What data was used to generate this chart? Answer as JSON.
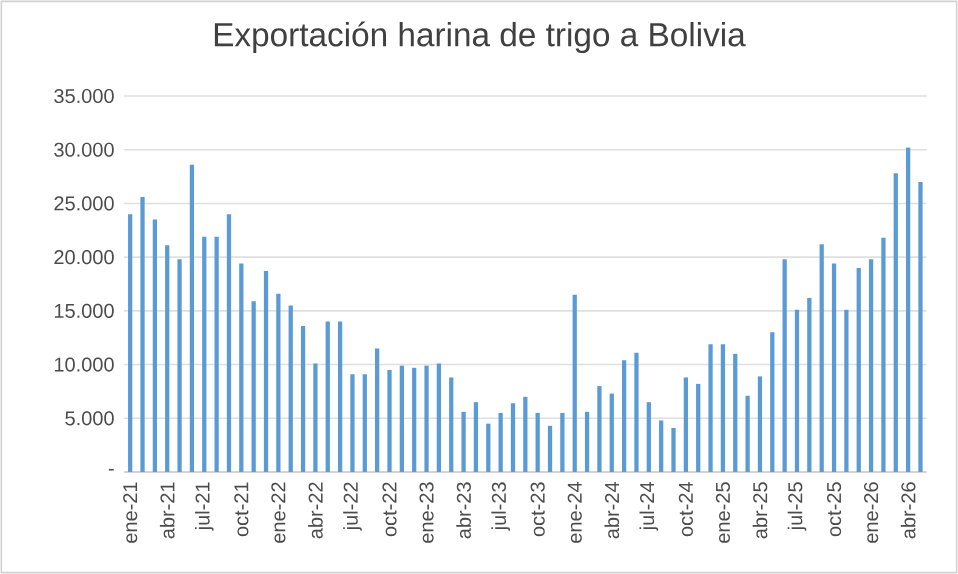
{
  "chart_data": {
    "type": "bar",
    "title": "Exportación harina de trigo a Bolivia",
    "categories": [
      "ene-21",
      null,
      null,
      "abr-21",
      null,
      null,
      "jul-21",
      null,
      null,
      "oct-21",
      null,
      null,
      "ene-22",
      null,
      null,
      "abr-22",
      null,
      null,
      "jul-22",
      null,
      null,
      "oct-22",
      null,
      null,
      "ene-23",
      null,
      null,
      "abr-23",
      null,
      null,
      "jul-23",
      null,
      null,
      "oct-23",
      null,
      null,
      "ene-24",
      null,
      null,
      "abr-24",
      null,
      null,
      "jul-24",
      null,
      null,
      "oct-24",
      null,
      null,
      "ene-25",
      null,
      null,
      "abr-25",
      null,
      null,
      "jul-25",
      null,
      null,
      "oct-25",
      null,
      null,
      "ene-26",
      null,
      null,
      "abr-26",
      null
    ],
    "values": [
      24000,
      25600,
      23500,
      21100,
      19800,
      28600,
      21900,
      21900,
      24000,
      19400,
      15900,
      18700,
      16600,
      15500,
      13600,
      10100,
      14000,
      14000,
      9100,
      9100,
      11500,
      9500,
      9900,
      9700,
      9900,
      10100,
      8800,
      5600,
      6500,
      4500,
      5500,
      6400,
      7000,
      5500,
      4300,
      5500,
      16500,
      5600,
      8000,
      7300,
      10400,
      11100,
      6500,
      4800,
      4100,
      8800,
      8200,
      11900,
      11900,
      11000,
      7100,
      8900,
      13000,
      19800,
      15100,
      16200,
      21200,
      19400,
      15100,
      19000,
      19800,
      21800,
      27800,
      30200,
      27000
    ],
    "color": "#5b9bd5",
    "ylim": [
      0,
      35000
    ],
    "yticks": [
      {
        "value": 0,
        "label": "-"
      },
      {
        "value": 5000,
        "label": "5.000"
      },
      {
        "value": 10000,
        "label": "10.000"
      },
      {
        "value": 15000,
        "label": "15.000"
      },
      {
        "value": 20000,
        "label": "20.000"
      },
      {
        "value": 25000,
        "label": "25.000"
      },
      {
        "value": 30000,
        "label": "30.000"
      },
      {
        "value": 35000,
        "label": "35.000"
      }
    ],
    "grid": "y"
  }
}
